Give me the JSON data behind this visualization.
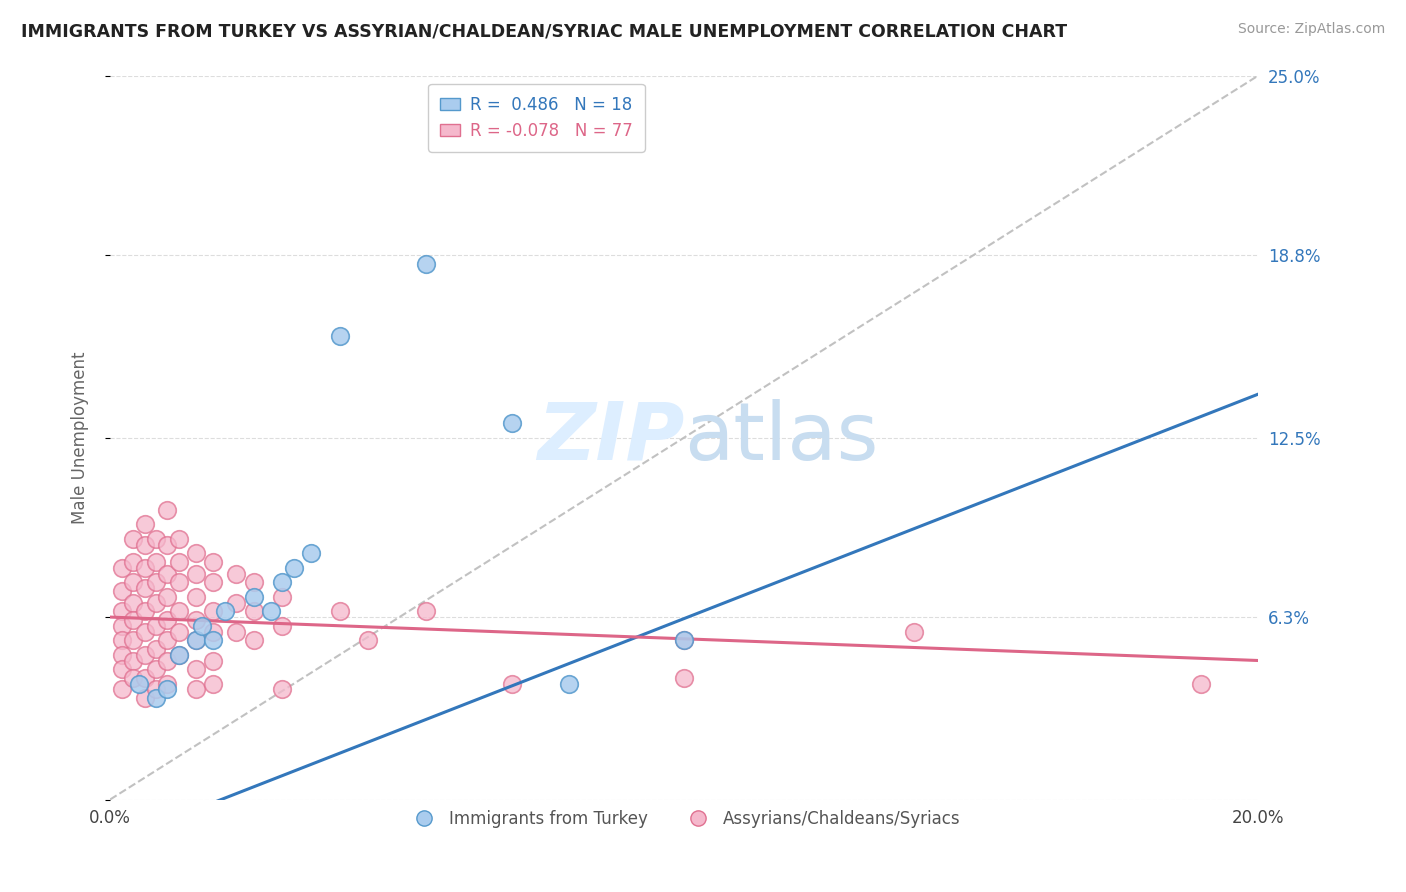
{
  "title": "IMMIGRANTS FROM TURKEY VS ASSYRIAN/CHALDEAN/SYRIAC MALE UNEMPLOYMENT CORRELATION CHART",
  "source": "Source: ZipAtlas.com",
  "xlabel_blue": "Immigrants from Turkey",
  "xlabel_pink": "Assyrians/Chaldeans/Syriacs",
  "ylabel": "Male Unemployment",
  "r_blue": 0.486,
  "n_blue": 18,
  "r_pink": -0.078,
  "n_pink": 77,
  "xmin": 0.0,
  "xmax": 0.2,
  "ymin": 0.0,
  "ymax": 0.25,
  "yticks": [
    0.0,
    0.063,
    0.125,
    0.188,
    0.25
  ],
  "ytick_labels": [
    "",
    "6.3%",
    "12.5%",
    "18.8%",
    "25.0%"
  ],
  "xtick_labels": [
    "0.0%",
    "20.0%"
  ],
  "background_color": "#ffffff",
  "blue_color": "#aaccee",
  "blue_edge_color": "#5599cc",
  "blue_line_color": "#3377bb",
  "pink_color": "#f5b8cc",
  "pink_edge_color": "#e07090",
  "pink_line_color": "#dd6688",
  "ref_line_color": "#bbbbbb",
  "grid_color": "#dddddd",
  "watermark_color": "#ddeeff",
  "blue_scatter": [
    [
      0.005,
      0.04
    ],
    [
      0.008,
      0.035
    ],
    [
      0.01,
      0.038
    ],
    [
      0.012,
      0.05
    ],
    [
      0.015,
      0.055
    ],
    [
      0.016,
      0.06
    ],
    [
      0.018,
      0.055
    ],
    [
      0.02,
      0.065
    ],
    [
      0.025,
      0.07
    ],
    [
      0.028,
      0.065
    ],
    [
      0.03,
      0.075
    ],
    [
      0.032,
      0.08
    ],
    [
      0.035,
      0.085
    ],
    [
      0.04,
      0.16
    ],
    [
      0.055,
      0.185
    ],
    [
      0.07,
      0.13
    ],
    [
      0.08,
      0.04
    ],
    [
      0.1,
      0.055
    ]
  ],
  "pink_scatter": [
    [
      0.002,
      0.08
    ],
    [
      0.002,
      0.072
    ],
    [
      0.002,
      0.065
    ],
    [
      0.002,
      0.06
    ],
    [
      0.002,
      0.055
    ],
    [
      0.002,
      0.05
    ],
    [
      0.002,
      0.045
    ],
    [
      0.002,
      0.038
    ],
    [
      0.004,
      0.09
    ],
    [
      0.004,
      0.082
    ],
    [
      0.004,
      0.075
    ],
    [
      0.004,
      0.068
    ],
    [
      0.004,
      0.062
    ],
    [
      0.004,
      0.055
    ],
    [
      0.004,
      0.048
    ],
    [
      0.004,
      0.042
    ],
    [
      0.006,
      0.095
    ],
    [
      0.006,
      0.088
    ],
    [
      0.006,
      0.08
    ],
    [
      0.006,
      0.073
    ],
    [
      0.006,
      0.065
    ],
    [
      0.006,
      0.058
    ],
    [
      0.006,
      0.05
    ],
    [
      0.006,
      0.042
    ],
    [
      0.006,
      0.035
    ],
    [
      0.008,
      0.09
    ],
    [
      0.008,
      0.082
    ],
    [
      0.008,
      0.075
    ],
    [
      0.008,
      0.068
    ],
    [
      0.008,
      0.06
    ],
    [
      0.008,
      0.052
    ],
    [
      0.008,
      0.045
    ],
    [
      0.008,
      0.038
    ],
    [
      0.01,
      0.1
    ],
    [
      0.01,
      0.088
    ],
    [
      0.01,
      0.078
    ],
    [
      0.01,
      0.07
    ],
    [
      0.01,
      0.062
    ],
    [
      0.01,
      0.055
    ],
    [
      0.01,
      0.048
    ],
    [
      0.01,
      0.04
    ],
    [
      0.012,
      0.09
    ],
    [
      0.012,
      0.082
    ],
    [
      0.012,
      0.075
    ],
    [
      0.012,
      0.065
    ],
    [
      0.012,
      0.058
    ],
    [
      0.012,
      0.05
    ],
    [
      0.015,
      0.085
    ],
    [
      0.015,
      0.078
    ],
    [
      0.015,
      0.07
    ],
    [
      0.015,
      0.062
    ],
    [
      0.015,
      0.055
    ],
    [
      0.015,
      0.045
    ],
    [
      0.015,
      0.038
    ],
    [
      0.018,
      0.082
    ],
    [
      0.018,
      0.075
    ],
    [
      0.018,
      0.065
    ],
    [
      0.018,
      0.058
    ],
    [
      0.018,
      0.048
    ],
    [
      0.018,
      0.04
    ],
    [
      0.022,
      0.078
    ],
    [
      0.022,
      0.068
    ],
    [
      0.022,
      0.058
    ],
    [
      0.025,
      0.075
    ],
    [
      0.025,
      0.065
    ],
    [
      0.025,
      0.055
    ],
    [
      0.03,
      0.07
    ],
    [
      0.03,
      0.06
    ],
    [
      0.03,
      0.038
    ],
    [
      0.04,
      0.065
    ],
    [
      0.045,
      0.055
    ],
    [
      0.055,
      0.065
    ],
    [
      0.07,
      0.04
    ],
    [
      0.1,
      0.055
    ],
    [
      0.1,
      0.042
    ],
    [
      0.14,
      0.058
    ],
    [
      0.19,
      0.04
    ]
  ],
  "blue_line": [
    0.0,
    0.2
  ],
  "blue_line_y": [
    -0.015,
    0.14
  ],
  "pink_line": [
    0.0,
    0.2
  ],
  "pink_line_y": [
    0.063,
    0.048
  ]
}
